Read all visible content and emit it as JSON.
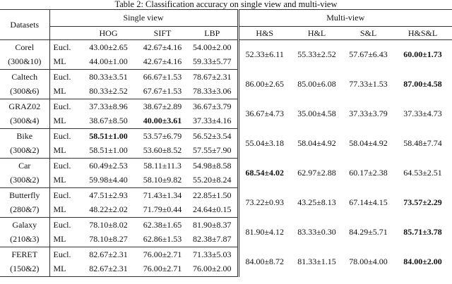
{
  "caption": "Table 2: Classification accuracy on single view and multi-view",
  "header": {
    "datasets": "Datasets",
    "single_view": "Single view",
    "multi_view": "Multi-view",
    "single_columns": [
      "HOG",
      "SIFT",
      "LBP"
    ],
    "multi_columns": [
      "H&S",
      "H&L",
      "S&L",
      "H&S&L"
    ]
  },
  "rows": [
    {
      "name": "Corel",
      "size": "(300&10)",
      "metrics": [
        {
          "metric": "Eucl.",
          "single": [
            "43.00±2.65",
            "42.67±4.16",
            "54.00±2.00"
          ]
        },
        {
          "metric": "ML",
          "single": [
            "44.00±1.00",
            "42.67±4.16",
            "59.33±5.77"
          ]
        }
      ],
      "multi": [
        "52.33±6.11",
        "55.33±2.52",
        "57.67±6.43",
        "60.00±1.73"
      ]
    },
    {
      "name": "Caltech",
      "size": "(300&6)",
      "metrics": [
        {
          "metric": "Eucl.",
          "single": [
            "80.33±3.51",
            "66.67±1.53",
            "78.67±2.31"
          ]
        },
        {
          "metric": "ML",
          "single": [
            "80.33±2.52",
            "67.67±1.53",
            "78.33±3.06"
          ]
        }
      ],
      "multi": [
        "86.00±2.65",
        "85.00±6.08",
        "77.33±1.53",
        "87.00±4.58"
      ]
    },
    {
      "name": "GRAZ02",
      "size": "(300&4)",
      "metrics": [
        {
          "metric": "Eucl.",
          "single": [
            "37.33±8.96",
            "38.67±2.89",
            "36.67±3.79"
          ]
        },
        {
          "metric": "ML",
          "single": [
            "38.67±8.50",
            "40.00±3.61",
            "37.33±4.16"
          ]
        }
      ],
      "multi": [
        "36.67±4.73",
        "35.00±4.58",
        "37.33±3.79",
        "37.33±4.73"
      ]
    },
    {
      "name": "Bike",
      "size": "(300&2)",
      "metrics": [
        {
          "metric": "Eucl.",
          "single": [
            "58.51±1.00",
            "53.57±6.79",
            "56.52±3.54"
          ]
        },
        {
          "metric": "ML",
          "single": [
            "58.51±1.00",
            "53.60±8.52",
            "57.55±7.90"
          ]
        }
      ],
      "multi": [
        "55.04±3.18",
        "58.04±4.92",
        "58.04±4.92",
        "58.48±7.74"
      ]
    },
    {
      "name": "Car",
      "size": "(300&2)",
      "metrics": [
        {
          "metric": "Eucl.",
          "single": [
            "60.49±2.53",
            "58.11±11.3",
            "54.98±8.58"
          ]
        },
        {
          "metric": "ML",
          "single": [
            "59.98±4.40",
            "58.10±9.82",
            "55.20±8.24"
          ]
        }
      ],
      "multi": [
        "68.54±4.02",
        "62.97±2.88",
        "60.17±2.38",
        "64.53±2.51"
      ]
    },
    {
      "name": "Butterfly",
      "size": "(280&7)",
      "metrics": [
        {
          "metric": "Eucl.",
          "single": [
            "47.51±2.93",
            "71.43±1.34",
            "22.85±1.50"
          ]
        },
        {
          "metric": "ML",
          "single": [
            "48.22±2.02",
            "71.79±0.44",
            "24.64±0.15"
          ]
        }
      ],
      "multi": [
        "73.22±0.93",
        "43.25±8.13",
        "67.14±4.15",
        "73.57±2.29"
      ]
    },
    {
      "name": "Galaxy",
      "size": "(210&3)",
      "metrics": [
        {
          "metric": "Eucl.",
          "single": [
            "78.10±8.02",
            "62.38±1.65",
            "81.90±8.37"
          ]
        },
        {
          "metric": "ML",
          "single": [
            "78.10±8.27",
            "62.86±1.53",
            "82.38±7.87"
          ]
        }
      ],
      "multi": [
        "81.90±4.12",
        "83.33±0.30",
        "84.29±5.71",
        "85.71±3.78"
      ]
    },
    {
      "name": "FERET",
      "size": "(150&2)",
      "metrics": [
        {
          "metric": "Eucl.",
          "single": [
            "82.67±2.31",
            "76.00±2.71",
            "71.33±5.03"
          ]
        },
        {
          "metric": "ML",
          "single": [
            "82.67±2.31",
            "76.00±2.71",
            "76.00±2.00"
          ]
        }
      ],
      "multi": [
        "84.00±8.72",
        "81.33±1.15",
        "78.00±4.00",
        "84.00±2.00"
      ]
    }
  ]
}
